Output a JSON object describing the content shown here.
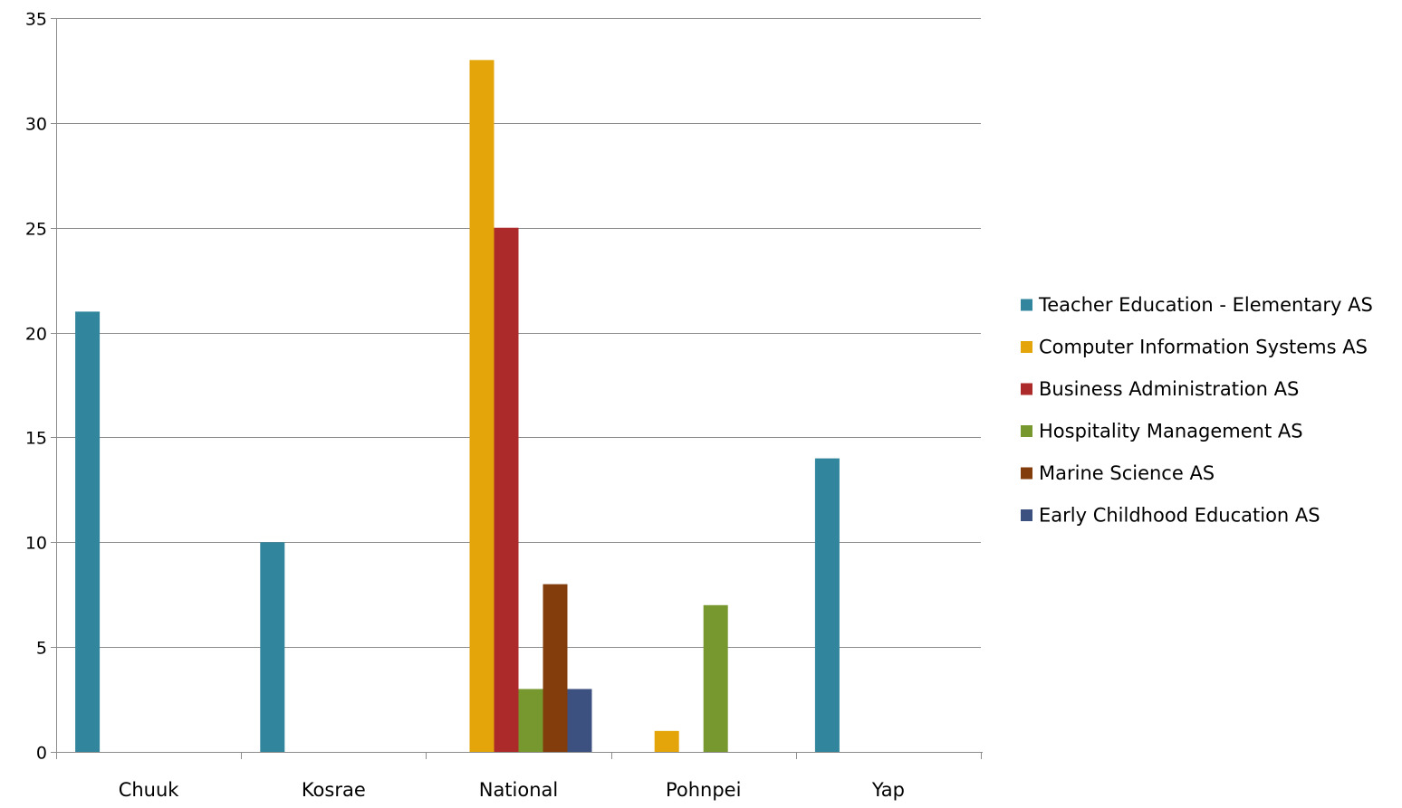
{
  "chart_data": {
    "type": "bar",
    "title": "",
    "xlabel": "",
    "ylabel": "",
    "categories": [
      "Chuuk",
      "Kosrae",
      "National",
      "Pohnpei",
      "Yap"
    ],
    "ylim": [
      0,
      35
    ],
    "yticks": [
      0,
      5,
      10,
      15,
      20,
      25,
      30,
      35
    ],
    "grid": true,
    "legend_position": "right",
    "series": [
      {
        "name": "Teacher Education - Elementary AS",
        "color": "#31859C",
        "values": [
          21,
          10,
          0,
          0,
          14
        ]
      },
      {
        "name": "Computer Information Systems AS",
        "color": "#E3A50A",
        "values": [
          0,
          0,
          33,
          1,
          0
        ]
      },
      {
        "name": "Business Administration AS",
        "color": "#AD2A2A",
        "values": [
          0,
          0,
          25,
          0,
          0
        ]
      },
      {
        "name": "Hospitality Management AS",
        "color": "#77982F",
        "values": [
          0,
          0,
          3,
          7,
          0
        ]
      },
      {
        "name": "Marine Science AS",
        "color": "#833C0B",
        "values": [
          0,
          0,
          8,
          0,
          0
        ]
      },
      {
        "name": "Early Childhood Education AS",
        "color": "#3D5180",
        "values": [
          0,
          0,
          3,
          0,
          0
        ]
      }
    ]
  }
}
